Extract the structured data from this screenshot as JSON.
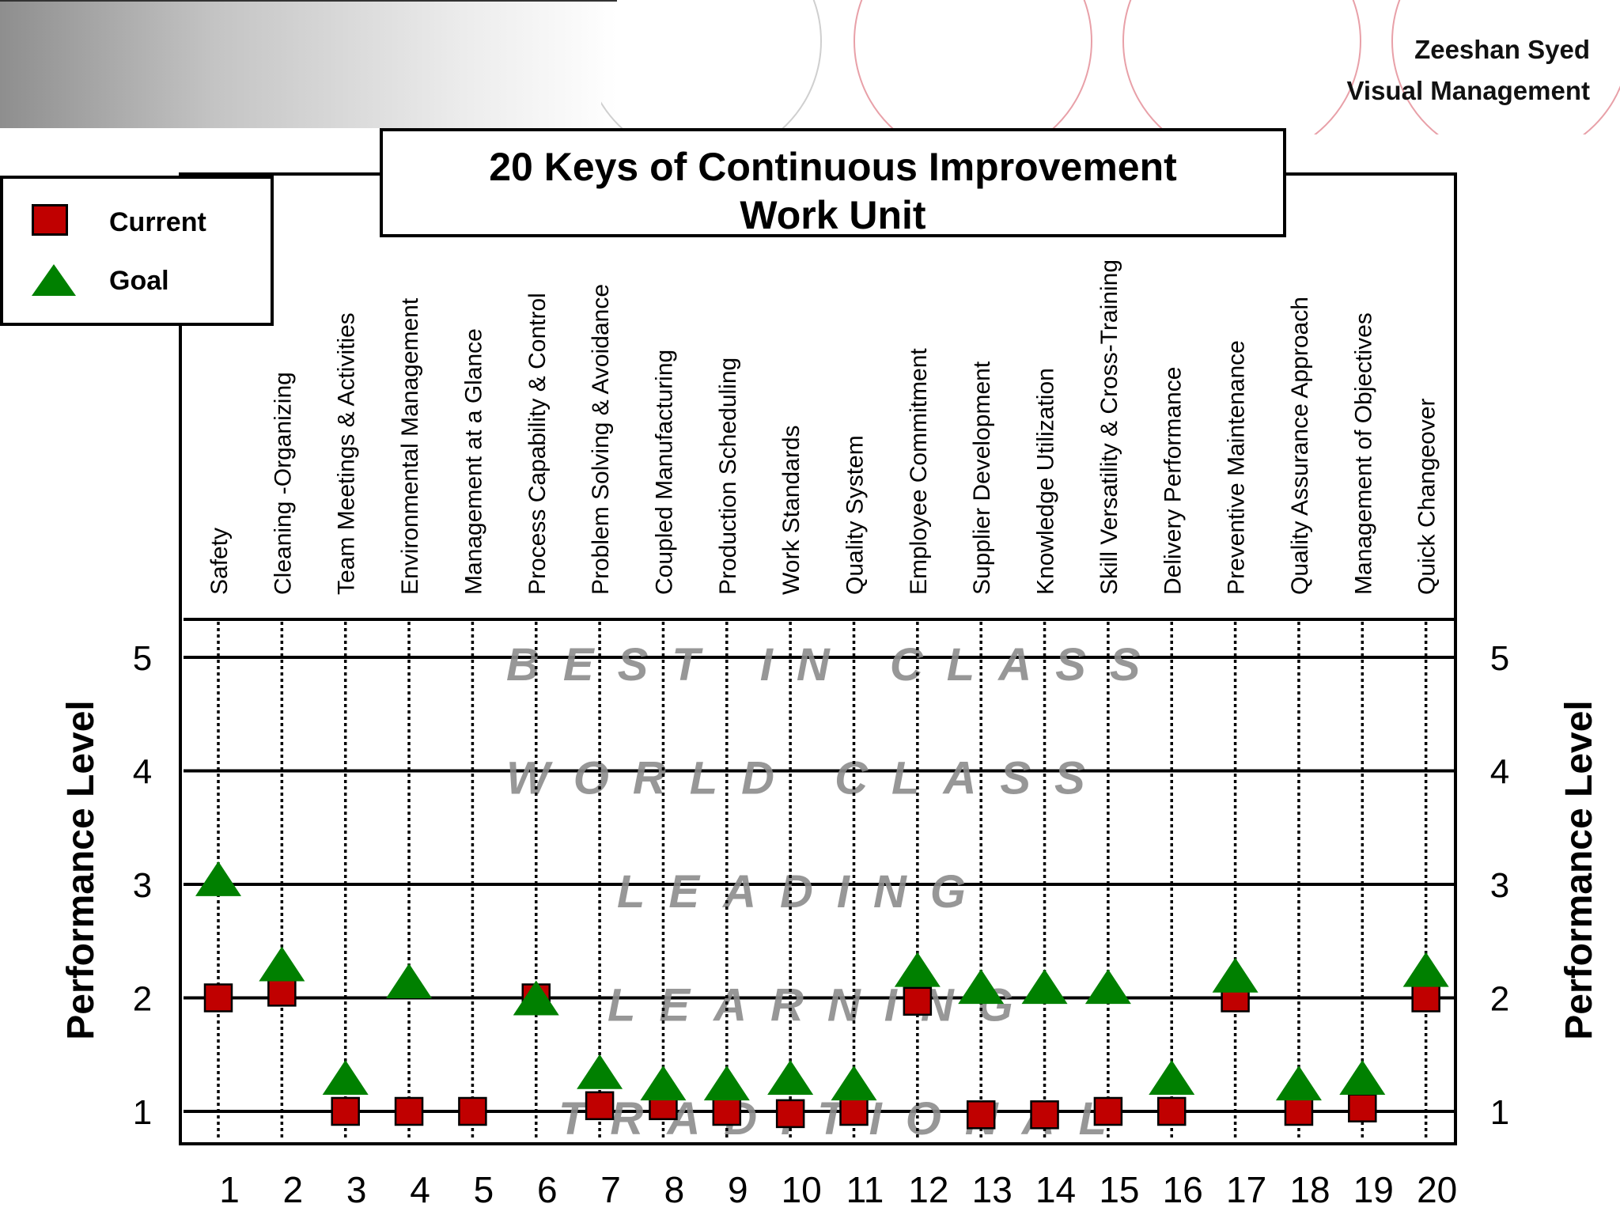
{
  "header": {
    "author": "Zeeshan Syed",
    "subtitle": "Visual Management"
  },
  "legend": {
    "current_label": "Current",
    "goal_label": "Goal"
  },
  "colors": {
    "current": "#c00000",
    "goal": "#008000",
    "band_text": "#8c8c8c",
    "decor_arcs": "#e8a0a8"
  },
  "chart_data": {
    "type": "scatter",
    "title": "20 Keys of Continuous Improvement",
    "subtitle": "Work Unit",
    "ylabel": "Performance Level",
    "ylim": [
      1,
      5
    ],
    "yticks": [
      1,
      2,
      3,
      4,
      5
    ],
    "x": [
      1,
      2,
      3,
      4,
      5,
      6,
      7,
      8,
      9,
      10,
      11,
      12,
      13,
      14,
      15,
      16,
      17,
      18,
      19,
      20
    ],
    "categories": [
      "Safety",
      "Cleaning -Organizing",
      "Team Meetings & Activities",
      "Environmental Management",
      "Management at a Glance",
      "Process  Capability & Control",
      "Problem Solving & Avoidance",
      "Coupled Manufacturing",
      "Production Scheduling",
      "Work Standards",
      "Quality System",
      "Employee Commitment",
      "Supplier Development",
      "Knowledge Utilization",
      "Skill Versatility & Cross-Training",
      "Delivery Performance",
      "Preventive Maintenance",
      "Quality Assurance Approach",
      "Management of Objectives",
      "Quick Changeover"
    ],
    "levels": [
      {
        "value": 5,
        "name": "BEST IN CLASS"
      },
      {
        "value": 4,
        "name": "WORLD CLASS"
      },
      {
        "value": 3,
        "name": "LEADING"
      },
      {
        "value": 2,
        "name": "LEARNING"
      },
      {
        "value": 1,
        "name": "TRADITIONAL"
      }
    ],
    "series": [
      {
        "name": "Current",
        "marker": "square",
        "values": [
          {
            "x": 1,
            "y": 2.0
          },
          {
            "x": 2,
            "y": 2.05
          },
          {
            "x": 3,
            "y": 1.0
          },
          {
            "x": 4,
            "y": 1.0
          },
          {
            "x": 5,
            "y": 1.0
          },
          {
            "x": 6,
            "y": 2.0
          },
          {
            "x": 7,
            "y": 1.05
          },
          {
            "x": 8,
            "y": 1.05
          },
          {
            "x": 9,
            "y": 1.0
          },
          {
            "x": 10,
            "y": 0.98
          },
          {
            "x": 11,
            "y": 1.0
          },
          {
            "x": 12,
            "y": 1.97
          },
          {
            "x": 13,
            "y": 0.97
          },
          {
            "x": 14,
            "y": 0.97
          },
          {
            "x": 15,
            "y": 1.0
          },
          {
            "x": 16,
            "y": 1.0
          },
          {
            "x": 17,
            "y": 2.0
          },
          {
            "x": 18,
            "y": 1.0
          },
          {
            "x": 19,
            "y": 1.03
          },
          {
            "x": 20,
            "y": 2.0
          }
        ]
      },
      {
        "name": "Goal",
        "marker": "triangle",
        "values": [
          {
            "x": 1,
            "y": 3.05
          },
          {
            "x": 2,
            "y": 2.3
          },
          {
            "x": 3,
            "y": 1.3
          },
          {
            "x": 4,
            "y": 2.15
          },
          {
            "x": 6,
            "y": 2.0
          },
          {
            "x": 7,
            "y": 1.35
          },
          {
            "x": 8,
            "y": 1.25
          },
          {
            "x": 9,
            "y": 1.25
          },
          {
            "x": 10,
            "y": 1.3
          },
          {
            "x": 11,
            "y": 1.25
          },
          {
            "x": 12,
            "y": 2.25
          },
          {
            "x": 13,
            "y": 2.1
          },
          {
            "x": 14,
            "y": 2.1
          },
          {
            "x": 15,
            "y": 2.1
          },
          {
            "x": 16,
            "y": 1.3
          },
          {
            "x": 17,
            "y": 2.2
          },
          {
            "x": 18,
            "y": 1.25
          },
          {
            "x": 19,
            "y": 1.3
          },
          {
            "x": 20,
            "y": 2.25
          }
        ]
      }
    ],
    "grid": true,
    "legend_position": "top-left"
  }
}
